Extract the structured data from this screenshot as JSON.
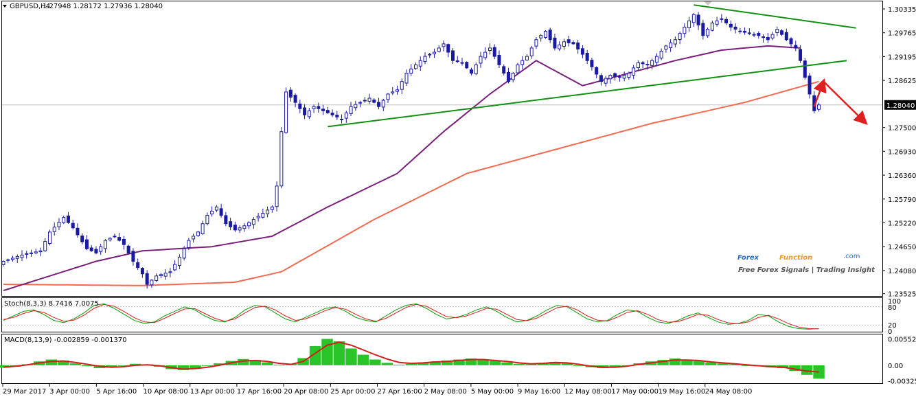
{
  "header": {
    "symbol": "GBPUSD,H4",
    "ohlc": "1.27948 1.28172 1.27936 1.28040"
  },
  "watermark": {
    "brand_forex": "Forex",
    "brand_function": "Function",
    "domain": ".com",
    "tagline": "Free Forex Signals | Trading Insight"
  },
  "colors": {
    "candle": "#1a1aa0",
    "ma_slow": "#f26b50",
    "ma_mid": "#7a1f7a",
    "trendline": "#129012",
    "arrow": "#e02020",
    "stoch_main": "#0a9c0a",
    "stoch_signal": "#d51d1d",
    "macd_hist": "#28c428",
    "macd_signal": "#d51d1d",
    "brand_blue": "#2b6cd1",
    "brand_orange": "#f39a1e"
  },
  "chart_data": [
    {
      "type": "candlestick",
      "title": "GBPUSD,H4",
      "ylim": [
        1.2352,
        1.3045
      ],
      "y_ticks": [
        "1.30335",
        "1.29765",
        "1.29195",
        "1.28625",
        "1.28040",
        "1.27500",
        "1.26930",
        "1.26360",
        "1.25790",
        "1.25220",
        "1.24650",
        "1.24080",
        "1.23525"
      ],
      "current_price": 1.2804,
      "x_labels": [
        "29 Mar 2017",
        "3 Apr 00:00",
        "5 Apr 16:00",
        "10 Apr 08:00",
        "13 Apr 00:00",
        "17 Apr 16:00",
        "20 Apr 08:00",
        "25 Apr 00:00",
        "27 Apr 16:00",
        "2 May 08:00",
        "5 May 00:00",
        "9 May 16:00",
        "12 May 08:00",
        "17 May 00:00",
        "19 May 16:00",
        "24 May 08:00"
      ],
      "close_path": [
        [
          0,
          1.243
        ],
        [
          4,
          1.2445
        ],
        [
          8,
          1.2455
        ],
        [
          10,
          1.25
        ],
        [
          13,
          1.2535
        ],
        [
          15,
          1.251
        ],
        [
          18,
          1.246
        ],
        [
          20,
          1.245
        ],
        [
          22,
          1.248
        ],
        [
          24,
          1.249
        ],
        [
          26,
          1.247
        ],
        [
          28,
          1.243
        ],
        [
          30,
          1.24
        ],
        [
          31,
          1.2375
        ],
        [
          33,
          1.2395
        ],
        [
          36,
          1.2405
        ],
        [
          38,
          1.244
        ],
        [
          40,
          1.248
        ],
        [
          42,
          1.25
        ],
        [
          44,
          1.254
        ],
        [
          46,
          1.256
        ],
        [
          48,
          1.252
        ],
        [
          50,
          1.2505
        ],
        [
          52,
          1.2515
        ],
        [
          54,
          1.253
        ],
        [
          56,
          1.2545
        ],
        [
          58,
          1.256
        ],
        [
          59,
          1.261
        ],
        [
          60,
          1.274
        ],
        [
          61,
          1.2835
        ],
        [
          63,
          1.281
        ],
        [
          65,
          1.278
        ],
        [
          67,
          1.28
        ],
        [
          69,
          1.279
        ],
        [
          71,
          1.278
        ],
        [
          73,
          1.277
        ],
        [
          75,
          1.28
        ],
        [
          77,
          1.281
        ],
        [
          79,
          1.282
        ],
        [
          81,
          1.28
        ],
        [
          83,
          1.283
        ],
        [
          85,
          1.284
        ],
        [
          87,
          1.288
        ],
        [
          89,
          1.29
        ],
        [
          91,
          1.292
        ],
        [
          93,
          1.293
        ],
        [
          95,
          1.295
        ],
        [
          97,
          1.291
        ],
        [
          99,
          1.2905
        ],
        [
          101,
          1.288
        ],
        [
          103,
          1.292
        ],
        [
          105,
          1.294
        ],
        [
          107,
          1.29
        ],
        [
          109,
          1.286
        ],
        [
          111,
          1.29
        ],
        [
          113,
          1.292
        ],
        [
          115,
          1.296
        ],
        [
          117,
          1.298
        ],
        [
          119,
          1.294
        ],
        [
          121,
          1.2955
        ],
        [
          123,
          1.295
        ],
        [
          125,
          1.2925
        ],
        [
          127,
          1.2895
        ],
        [
          129,
          1.286
        ],
        [
          131,
          1.2875
        ],
        [
          133,
          1.287
        ],
        [
          135,
          1.288
        ],
        [
          137,
          1.2905
        ],
        [
          139,
          1.29
        ],
        [
          141,
          1.292
        ],
        [
          143,
          1.2945
        ],
        [
          145,
          1.296
        ],
        [
          147,
          1.299
        ],
        [
          149,
          1.302
        ],
        [
          151,
          1.297
        ],
        [
          153,
          1.3
        ],
        [
          155,
          1.301
        ],
        [
          157,
          1.299
        ],
        [
          159,
          1.298
        ],
        [
          161,
          1.2975
        ],
        [
          163,
          1.297
        ],
        [
          165,
          1.296
        ],
        [
          167,
          1.2985
        ],
        [
          169,
          1.296
        ],
        [
          171,
          1.294
        ],
        [
          172,
          1.291
        ],
        [
          173,
          1.287
        ],
        [
          174,
          1.283
        ],
        [
          175,
          1.279
        ],
        [
          176,
          1.2804
        ]
      ],
      "ma_slow_path": [
        [
          0,
          1.2375
        ],
        [
          30,
          1.2372
        ],
        [
          50,
          1.238
        ],
        [
          60,
          1.2405
        ],
        [
          80,
          1.253
        ],
        [
          100,
          1.264
        ],
        [
          120,
          1.27
        ],
        [
          140,
          1.276
        ],
        [
          160,
          1.281
        ],
        [
          176,
          1.286
        ]
      ],
      "ma_mid_path": [
        [
          0,
          1.236
        ],
        [
          20,
          1.243
        ],
        [
          30,
          1.2455
        ],
        [
          45,
          1.2465
        ],
        [
          58,
          1.249
        ],
        [
          70,
          1.256
        ],
        [
          85,
          1.264
        ],
        [
          95,
          1.274
        ],
        [
          105,
          1.283
        ],
        [
          115,
          1.291
        ],
        [
          125,
          1.285
        ],
        [
          135,
          1.288
        ],
        [
          145,
          1.291
        ],
        [
          155,
          1.2935
        ],
        [
          165,
          1.2945
        ],
        [
          172,
          1.294
        ]
      ],
      "trendlines": [
        {
          "from": [
            70,
            1.2752
          ],
          "to": [
            182,
            1.291
          ]
        },
        {
          "from": [
            149,
            1.3043
          ],
          "to": [
            184,
            1.2988
          ]
        }
      ],
      "arrows": [
        {
          "from": [
            175,
            1.28
          ],
          "to": [
            177,
            1.286
          ]
        },
        {
          "from": [
            177,
            1.286
          ],
          "to": [
            186,
            1.2762
          ]
        }
      ]
    },
    {
      "type": "line",
      "title": "Stoch(8,3,3) 8.7416 7.0075",
      "ylim": [
        0,
        100
      ],
      "levels": [
        80,
        20
      ],
      "y_ticks": [
        "100",
        "80",
        "20",
        "0"
      ],
      "series": [
        {
          "name": "main",
          "values": [
            35,
            50,
            65,
            70,
            55,
            35,
            28,
            40,
            60,
            85,
            90,
            75,
            55,
            35,
            25,
            30,
            50,
            65,
            80,
            70,
            50,
            35,
            30,
            45,
            70,
            85,
            80,
            60,
            40,
            30,
            45,
            60,
            75,
            80,
            65,
            45,
            35,
            30,
            50,
            70,
            85,
            90,
            75,
            55,
            40,
            45,
            55,
            70,
            80,
            65,
            45,
            30,
            35,
            50,
            70,
            85,
            80,
            60,
            40,
            30,
            35,
            55,
            70,
            65,
            45,
            30,
            25,
            35,
            50,
            60,
            45,
            30,
            22,
            25,
            35,
            55,
            50,
            30,
            15,
            8,
            6,
            8
          ]
        },
        {
          "name": "signal",
          "values": [
            38,
            45,
            58,
            67,
            62,
            45,
            32,
            36,
            52,
            75,
            88,
            82,
            64,
            44,
            30,
            28,
            42,
            58,
            73,
            74,
            58,
            42,
            32,
            40,
            60,
            78,
            82,
            70,
            50,
            35,
            40,
            53,
            68,
            78,
            72,
            55,
            40,
            32,
            42,
            60,
            78,
            88,
            82,
            65,
            48,
            44,
            50,
            62,
            75,
            72,
            55,
            38,
            34,
            43,
            60,
            77,
            82,
            70,
            50,
            36,
            33,
            46,
            62,
            67,
            55,
            38,
            29,
            31,
            42,
            55,
            52,
            38,
            27,
            24,
            30,
            45,
            52,
            40,
            24,
            13,
            8,
            7
          ]
        }
      ]
    },
    {
      "type": "bar",
      "title": "MACD(8,13,9) -0.002859 -0.001370",
      "y_ticks": [
        "0.005525",
        "0.00",
        "-0.003258"
      ],
      "ylim": [
        -0.0036,
        0.006
      ],
      "series": [
        {
          "name": "histogram",
          "values": [
            -0.0005,
            -0.0003,
            0.0002,
            0.0008,
            0.0012,
            0.001,
            0.0004,
            -0.0002,
            -0.0006,
            -0.0005,
            -0.0001,
            0.0003,
            0.0002,
            -0.0003,
            -0.0008,
            -0.001,
            -0.0006,
            -0.0001,
            0.0004,
            0.0009,
            0.0013,
            0.0011,
            0.0006,
            0.0001,
            0.0003,
            0.0015,
            0.004,
            0.0055,
            0.005,
            0.0035,
            0.0022,
            0.0012,
            0.0005,
            0.0001,
            0.0003,
            0.0006,
            0.0008,
            0.001,
            0.0012,
            0.0014,
            0.0012,
            0.0009,
            0.0006,
            0.0003,
            0.0002,
            0.0005,
            0.0007,
            0.0004,
            0.0,
            -0.0004,
            -0.0006,
            -0.0004,
            -0.0001,
            0.0004,
            0.0008,
            0.0011,
            0.0014,
            0.0012,
            0.0009,
            0.0006,
            0.0004,
            0.0002,
            -0.0001,
            -0.0002,
            -0.0004,
            -0.0006,
            -0.0012,
            -0.002,
            -0.0028
          ]
        },
        {
          "name": "signal",
          "values": [
            -0.0004,
            -0.0002,
            0.0001,
            0.0005,
            0.0008,
            0.0009,
            0.0006,
            0.0002,
            -0.0002,
            -0.0004,
            -0.0003,
            0.0,
            0.0001,
            -0.0001,
            -0.0005,
            -0.0008,
            -0.0007,
            -0.0004,
            0.0,
            0.0005,
            0.0009,
            0.001,
            0.0008,
            0.0004,
            0.0002,
            0.0008,
            0.0025,
            0.0042,
            0.0048,
            0.0042,
            0.0032,
            0.0022,
            0.0013,
            0.0006,
            0.0004,
            0.0005,
            0.0007,
            0.0008,
            0.001,
            0.0012,
            0.0012,
            0.001,
            0.0008,
            0.0005,
            0.0003,
            0.0004,
            0.0006,
            0.0005,
            0.0002,
            -0.0002,
            -0.0004,
            -0.0004,
            -0.0002,
            0.0002,
            0.0005,
            0.0008,
            0.0011,
            0.0011,
            0.001,
            0.0007,
            0.0005,
            0.0003,
            0.0001,
            -0.0001,
            -0.0003,
            -0.0004,
            -0.0008,
            -0.0012,
            -0.0014
          ]
        }
      ]
    }
  ]
}
